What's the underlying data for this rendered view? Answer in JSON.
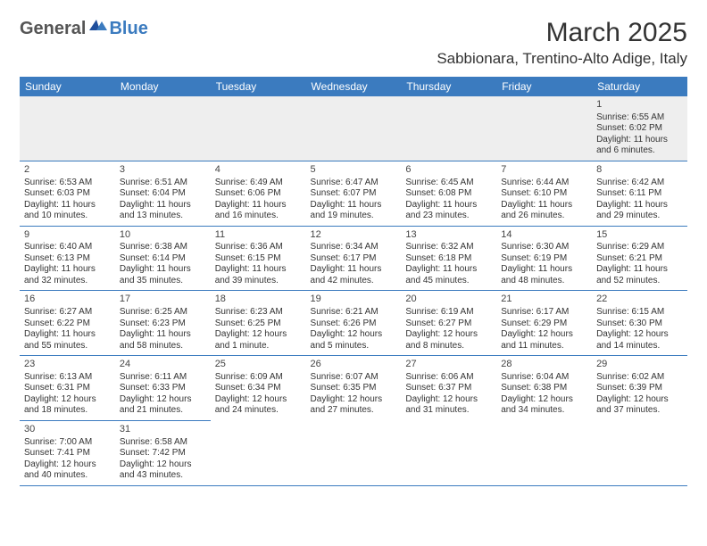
{
  "logo": {
    "text1": "General",
    "text2": "Blue"
  },
  "title": "March 2025",
  "location": "Sabbionara, Trentino-Alto Adige, Italy",
  "colors": {
    "header_bg": "#3b7bbf",
    "header_text": "#ffffff",
    "border": "#3b7bbf",
    "empty_bg": "#eeeeee",
    "text": "#333333"
  },
  "days_of_week": [
    "Sunday",
    "Monday",
    "Tuesday",
    "Wednesday",
    "Thursday",
    "Friday",
    "Saturday"
  ],
  "weeks": [
    [
      null,
      null,
      null,
      null,
      null,
      null,
      {
        "n": "1",
        "sr": "Sunrise: 6:55 AM",
        "ss": "Sunset: 6:02 PM",
        "dl": "Daylight: 11 hours and 6 minutes."
      }
    ],
    [
      {
        "n": "2",
        "sr": "Sunrise: 6:53 AM",
        "ss": "Sunset: 6:03 PM",
        "dl": "Daylight: 11 hours and 10 minutes."
      },
      {
        "n": "3",
        "sr": "Sunrise: 6:51 AM",
        "ss": "Sunset: 6:04 PM",
        "dl": "Daylight: 11 hours and 13 minutes."
      },
      {
        "n": "4",
        "sr": "Sunrise: 6:49 AM",
        "ss": "Sunset: 6:06 PM",
        "dl": "Daylight: 11 hours and 16 minutes."
      },
      {
        "n": "5",
        "sr": "Sunrise: 6:47 AM",
        "ss": "Sunset: 6:07 PM",
        "dl": "Daylight: 11 hours and 19 minutes."
      },
      {
        "n": "6",
        "sr": "Sunrise: 6:45 AM",
        "ss": "Sunset: 6:08 PM",
        "dl": "Daylight: 11 hours and 23 minutes."
      },
      {
        "n": "7",
        "sr": "Sunrise: 6:44 AM",
        "ss": "Sunset: 6:10 PM",
        "dl": "Daylight: 11 hours and 26 minutes."
      },
      {
        "n": "8",
        "sr": "Sunrise: 6:42 AM",
        "ss": "Sunset: 6:11 PM",
        "dl": "Daylight: 11 hours and 29 minutes."
      }
    ],
    [
      {
        "n": "9",
        "sr": "Sunrise: 6:40 AM",
        "ss": "Sunset: 6:13 PM",
        "dl": "Daylight: 11 hours and 32 minutes."
      },
      {
        "n": "10",
        "sr": "Sunrise: 6:38 AM",
        "ss": "Sunset: 6:14 PM",
        "dl": "Daylight: 11 hours and 35 minutes."
      },
      {
        "n": "11",
        "sr": "Sunrise: 6:36 AM",
        "ss": "Sunset: 6:15 PM",
        "dl": "Daylight: 11 hours and 39 minutes."
      },
      {
        "n": "12",
        "sr": "Sunrise: 6:34 AM",
        "ss": "Sunset: 6:17 PM",
        "dl": "Daylight: 11 hours and 42 minutes."
      },
      {
        "n": "13",
        "sr": "Sunrise: 6:32 AM",
        "ss": "Sunset: 6:18 PM",
        "dl": "Daylight: 11 hours and 45 minutes."
      },
      {
        "n": "14",
        "sr": "Sunrise: 6:30 AM",
        "ss": "Sunset: 6:19 PM",
        "dl": "Daylight: 11 hours and 48 minutes."
      },
      {
        "n": "15",
        "sr": "Sunrise: 6:29 AM",
        "ss": "Sunset: 6:21 PM",
        "dl": "Daylight: 11 hours and 52 minutes."
      }
    ],
    [
      {
        "n": "16",
        "sr": "Sunrise: 6:27 AM",
        "ss": "Sunset: 6:22 PM",
        "dl": "Daylight: 11 hours and 55 minutes."
      },
      {
        "n": "17",
        "sr": "Sunrise: 6:25 AM",
        "ss": "Sunset: 6:23 PM",
        "dl": "Daylight: 11 hours and 58 minutes."
      },
      {
        "n": "18",
        "sr": "Sunrise: 6:23 AM",
        "ss": "Sunset: 6:25 PM",
        "dl": "Daylight: 12 hours and 1 minute."
      },
      {
        "n": "19",
        "sr": "Sunrise: 6:21 AM",
        "ss": "Sunset: 6:26 PM",
        "dl": "Daylight: 12 hours and 5 minutes."
      },
      {
        "n": "20",
        "sr": "Sunrise: 6:19 AM",
        "ss": "Sunset: 6:27 PM",
        "dl": "Daylight: 12 hours and 8 minutes."
      },
      {
        "n": "21",
        "sr": "Sunrise: 6:17 AM",
        "ss": "Sunset: 6:29 PM",
        "dl": "Daylight: 12 hours and 11 minutes."
      },
      {
        "n": "22",
        "sr": "Sunrise: 6:15 AM",
        "ss": "Sunset: 6:30 PM",
        "dl": "Daylight: 12 hours and 14 minutes."
      }
    ],
    [
      {
        "n": "23",
        "sr": "Sunrise: 6:13 AM",
        "ss": "Sunset: 6:31 PM",
        "dl": "Daylight: 12 hours and 18 minutes."
      },
      {
        "n": "24",
        "sr": "Sunrise: 6:11 AM",
        "ss": "Sunset: 6:33 PM",
        "dl": "Daylight: 12 hours and 21 minutes."
      },
      {
        "n": "25",
        "sr": "Sunrise: 6:09 AM",
        "ss": "Sunset: 6:34 PM",
        "dl": "Daylight: 12 hours and 24 minutes."
      },
      {
        "n": "26",
        "sr": "Sunrise: 6:07 AM",
        "ss": "Sunset: 6:35 PM",
        "dl": "Daylight: 12 hours and 27 minutes."
      },
      {
        "n": "27",
        "sr": "Sunrise: 6:06 AM",
        "ss": "Sunset: 6:37 PM",
        "dl": "Daylight: 12 hours and 31 minutes."
      },
      {
        "n": "28",
        "sr": "Sunrise: 6:04 AM",
        "ss": "Sunset: 6:38 PM",
        "dl": "Daylight: 12 hours and 34 minutes."
      },
      {
        "n": "29",
        "sr": "Sunrise: 6:02 AM",
        "ss": "Sunset: 6:39 PM",
        "dl": "Daylight: 12 hours and 37 minutes."
      }
    ],
    [
      {
        "n": "30",
        "sr": "Sunrise: 7:00 AM",
        "ss": "Sunset: 7:41 PM",
        "dl": "Daylight: 12 hours and 40 minutes."
      },
      {
        "n": "31",
        "sr": "Sunrise: 6:58 AM",
        "ss": "Sunset: 7:42 PM",
        "dl": "Daylight: 12 hours and 43 minutes."
      },
      null,
      null,
      null,
      null,
      null
    ]
  ]
}
